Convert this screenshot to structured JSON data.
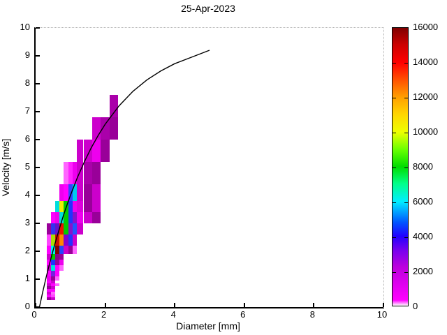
{
  "figure": {
    "title": "25-Apr-2023",
    "xlabel": "Diameter [mm]",
    "ylabel": "Velocity [m/s]"
  },
  "chart_data": {
    "type": "heatmap",
    "title": "25-Apr-2023",
    "xlabel": "Diameter [mm]",
    "ylabel": "Velocity [m/s]",
    "xlim": [
      0,
      10
    ],
    "ylim": [
      0,
      10
    ],
    "grid": "off",
    "x_ticks": [
      0,
      2,
      4,
      6,
      8,
      10
    ],
    "y_ticks": [
      0,
      1,
      2,
      3,
      4,
      5,
      6,
      7,
      8,
      9,
      10
    ],
    "colorbar": {
      "min": 0,
      "max": 16000,
      "ticks": [
        0,
        2000,
        4000,
        6000,
        8000,
        10000,
        12000,
        14000,
        16000
      ],
      "position": "right",
      "gradient": [
        [
          0.0,
          "#FFFFFF"
        ],
        [
          0.02,
          "#FF00FF"
        ],
        [
          0.14,
          "#BB00DD"
        ],
        [
          0.2,
          "#7700EE"
        ],
        [
          0.25,
          "#2200FF"
        ],
        [
          0.3,
          "#0055FF"
        ],
        [
          0.375,
          "#00EEFF"
        ],
        [
          0.44,
          "#00FF88"
        ],
        [
          0.5,
          "#00DD00"
        ],
        [
          0.56,
          "#66FF00"
        ],
        [
          0.625,
          "#EEFF00"
        ],
        [
          0.69,
          "#FFD500"
        ],
        [
          0.75,
          "#FFA000"
        ],
        [
          0.81,
          "#FF5500"
        ],
        [
          0.875,
          "#FF0000"
        ],
        [
          0.94,
          "#CC0000"
        ],
        [
          1.0,
          "#7F0000"
        ]
      ]
    },
    "cells_format": [
      "d_min_mm",
      "d_max_mm",
      "v_min_ms",
      "v_max_ms",
      "color",
      "count"
    ],
    "cells": [
      [
        0.312,
        0.437,
        0.25,
        0.35,
        "#990099",
        2000
      ],
      [
        0.437,
        0.562,
        0.25,
        0.35,
        "#CC00CC",
        1200
      ],
      [
        0.312,
        0.437,
        0.35,
        0.45,
        "#FF00FF",
        600
      ],
      [
        0.437,
        0.562,
        0.35,
        0.45,
        "#FF44FF",
        450
      ],
      [
        0.312,
        0.437,
        0.45,
        0.55,
        "#CC00CC",
        1200
      ],
      [
        0.437,
        0.562,
        0.45,
        0.55,
        "#FF66FF",
        250
      ],
      [
        0.312,
        0.437,
        0.55,
        0.65,
        "#FF00FF",
        600
      ],
      [
        0.437,
        0.562,
        0.55,
        0.65,
        "#FF00FF",
        600
      ],
      [
        0.312,
        0.437,
        0.65,
        0.75,
        "#990099",
        2000
      ],
      [
        0.437,
        0.562,
        0.65,
        0.75,
        "#CC00CC",
        1200
      ],
      [
        0.312,
        0.437,
        0.75,
        0.85,
        "#CC00CC",
        1200
      ],
      [
        0.437,
        0.562,
        0.75,
        0.85,
        "#FF00FF",
        600
      ],
      [
        0.562,
        0.687,
        0.75,
        0.85,
        "#FF66FF",
        250
      ],
      [
        0.312,
        0.437,
        0.85,
        0.95,
        "#FF00FF",
        600
      ],
      [
        0.437,
        0.562,
        0.85,
        0.95,
        "#CC00CC",
        1200
      ],
      [
        0.312,
        0.437,
        0.95,
        1.1,
        "#EE00EE",
        800
      ],
      [
        0.437,
        0.562,
        0.95,
        1.1,
        "#990099",
        2000
      ],
      [
        0.562,
        0.687,
        0.95,
        1.1,
        "#FF66FF",
        250
      ],
      [
        0.312,
        0.437,
        1.1,
        1.3,
        "#FF00FF",
        600
      ],
      [
        0.437,
        0.562,
        1.1,
        1.3,
        "#7722DD",
        3200
      ],
      [
        0.562,
        0.687,
        1.1,
        1.3,
        "#FF00FF",
        600
      ],
      [
        0.312,
        0.437,
        1.3,
        1.5,
        "#CC00CC",
        1200
      ],
      [
        0.437,
        0.562,
        1.3,
        1.5,
        "#00DDDD",
        6300
      ],
      [
        0.562,
        0.687,
        1.3,
        1.5,
        "#FF00FF",
        600
      ],
      [
        0.687,
        0.812,
        1.3,
        1.5,
        "#FF66FF",
        250
      ],
      [
        0.312,
        0.437,
        1.5,
        1.7,
        "#FF00FF",
        600
      ],
      [
        0.437,
        0.562,
        1.5,
        1.7,
        "#2233FF",
        4500
      ],
      [
        0.562,
        0.687,
        1.5,
        1.7,
        "#990099",
        2000
      ],
      [
        0.687,
        0.812,
        1.5,
        1.7,
        "#EE00EE",
        800
      ],
      [
        0.312,
        0.437,
        1.7,
        1.9,
        "#CC00CC",
        1200
      ],
      [
        0.437,
        0.562,
        1.7,
        1.9,
        "#00CC00",
        8500
      ],
      [
        0.562,
        0.687,
        1.7,
        1.9,
        "#880088",
        2300
      ],
      [
        0.687,
        0.812,
        1.7,
        1.9,
        "#990099",
        2000
      ],
      [
        0.312,
        0.437,
        1.9,
        2.2,
        "#FF00FF",
        600
      ],
      [
        0.437,
        0.562,
        1.9,
        2.2,
        "#00EEEE",
        6600
      ],
      [
        0.562,
        0.687,
        1.9,
        2.2,
        "#7F0000",
        16000
      ],
      [
        0.687,
        0.812,
        1.9,
        2.2,
        "#2244FF",
        4400
      ],
      [
        0.812,
        0.937,
        1.9,
        2.2,
        "#CC00CC",
        1200
      ],
      [
        0.937,
        1.062,
        1.9,
        2.2,
        "#990099",
        2000
      ],
      [
        1.062,
        1.187,
        1.9,
        2.2,
        "#FF66FF",
        250
      ],
      [
        0.312,
        0.437,
        2.2,
        2.6,
        "#FF44FF",
        450
      ],
      [
        0.437,
        0.562,
        2.2,
        2.6,
        "#AADD00",
        9800
      ],
      [
        0.562,
        0.687,
        2.2,
        2.6,
        "#CC1100",
        14900
      ],
      [
        0.687,
        0.812,
        2.2,
        2.6,
        "#FF8800",
        12600
      ],
      [
        0.812,
        0.937,
        2.2,
        2.6,
        "#8800CC",
        2900
      ],
      [
        0.937,
        1.062,
        2.2,
        2.6,
        "#2233FF",
        4500
      ],
      [
        1.062,
        1.187,
        2.2,
        2.6,
        "#CC00CC",
        1200
      ],
      [
        0.312,
        0.437,
        2.6,
        3.0,
        "#990099",
        2000
      ],
      [
        0.437,
        0.562,
        2.6,
        3.0,
        "#3333EE",
        4300
      ],
      [
        0.562,
        0.687,
        2.6,
        3.0,
        "#6611CC",
        3100
      ],
      [
        0.687,
        0.812,
        2.6,
        3.0,
        "#EE1100",
        14200
      ],
      [
        0.812,
        0.937,
        2.6,
        3.0,
        "#00CC00",
        8500
      ],
      [
        0.937,
        1.062,
        2.6,
        3.0,
        "#8811CC",
        2900
      ],
      [
        1.062,
        1.187,
        2.6,
        3.0,
        "#2255FF",
        4400
      ],
      [
        1.187,
        1.375,
        2.6,
        3.0,
        "#CC00CC",
        1200
      ],
      [
        0.437,
        0.562,
        3.0,
        3.4,
        "#FF00FF",
        600
      ],
      [
        0.562,
        0.687,
        3.0,
        3.4,
        "#EE00EE",
        800
      ],
      [
        0.687,
        0.812,
        3.0,
        3.4,
        "#00DDDD",
        6400
      ],
      [
        0.812,
        0.937,
        3.0,
        3.4,
        "#00CC00",
        8500
      ],
      [
        0.937,
        1.062,
        3.0,
        3.4,
        "#2233FF",
        4500
      ],
      [
        1.062,
        1.187,
        3.0,
        3.4,
        "#8811CC",
        2900
      ],
      [
        1.187,
        1.375,
        3.0,
        3.4,
        "#EE00EE",
        800
      ],
      [
        1.375,
        1.625,
        3.0,
        3.4,
        "#CC00CC",
        1200
      ],
      [
        1.625,
        1.875,
        3.0,
        3.4,
        "#990099",
        2000
      ],
      [
        0.562,
        0.687,
        3.4,
        3.8,
        "#00DDDD",
        6300
      ],
      [
        0.687,
        0.812,
        3.4,
        3.8,
        "#EEEE00",
        10800
      ],
      [
        0.812,
        0.937,
        3.4,
        3.8,
        "#00CC00",
        8500
      ],
      [
        0.937,
        1.062,
        3.4,
        3.8,
        "#2233FF",
        4500
      ],
      [
        1.062,
        1.187,
        3.4,
        3.8,
        "#EE00EE",
        800
      ],
      [
        1.187,
        1.375,
        3.4,
        3.8,
        "#DD00DD",
        1000
      ],
      [
        1.375,
        1.625,
        3.4,
        3.8,
        "#990099",
        2000
      ],
      [
        1.625,
        1.875,
        3.4,
        3.8,
        "#CC00CC",
        1200
      ],
      [
        0.687,
        0.812,
        3.8,
        4.4,
        "#EE00EE",
        800
      ],
      [
        0.812,
        0.937,
        3.8,
        4.4,
        "#FF00FF",
        600
      ],
      [
        0.937,
        1.062,
        3.8,
        4.4,
        "#3344FF",
        4400
      ],
      [
        1.062,
        1.187,
        3.8,
        4.4,
        "#00CCEE",
        6200
      ],
      [
        1.187,
        1.375,
        3.8,
        4.4,
        "#CC00CC",
        1200
      ],
      [
        1.375,
        1.625,
        3.8,
        4.4,
        "#990099",
        2000
      ],
      [
        1.625,
        1.875,
        3.8,
        4.4,
        "#CC00CC",
        1200
      ],
      [
        0.812,
        0.937,
        4.4,
        5.2,
        "#FF66FF",
        250
      ],
      [
        0.937,
        1.062,
        4.4,
        5.2,
        "#FF22FF",
        520
      ],
      [
        1.062,
        1.187,
        4.4,
        5.2,
        "#EE00EE",
        800
      ],
      [
        1.187,
        1.375,
        4.4,
        5.2,
        "#CC00CC",
        1200
      ],
      [
        1.375,
        1.625,
        4.4,
        5.2,
        "#AA00AA",
        1800
      ],
      [
        1.625,
        1.875,
        4.4,
        5.2,
        "#990099",
        2000
      ],
      [
        1.187,
        1.375,
        5.2,
        6.0,
        "#CC00CC",
        1200
      ],
      [
        1.375,
        1.625,
        5.2,
        6.0,
        "#CC00CC",
        1200
      ],
      [
        1.625,
        1.875,
        5.2,
        6.0,
        "#EE00EE",
        800
      ],
      [
        1.875,
        2.125,
        5.2,
        6.0,
        "#990099",
        2000
      ],
      [
        1.625,
        1.875,
        6.0,
        6.8,
        "#CC00CC",
        1200
      ],
      [
        1.875,
        2.125,
        6.0,
        6.8,
        "#AA00AA",
        1800
      ],
      [
        2.125,
        2.375,
        6.0,
        6.8,
        "#990099",
        2000
      ],
      [
        2.125,
        2.375,
        6.8,
        7.6,
        "#AA00AA",
        1800
      ]
    ],
    "curve": {
      "name": "terminal-velocity-fit-curve",
      "color": "#000000",
      "points": [
        [
          0.11,
          0.0
        ],
        [
          0.2,
          0.52
        ],
        [
          0.3,
          1.05
        ],
        [
          0.4,
          1.55
        ],
        [
          0.5,
          2.02
        ],
        [
          0.6,
          2.46
        ],
        [
          0.7,
          2.88
        ],
        [
          0.8,
          3.28
        ],
        [
          0.9,
          3.65
        ],
        [
          1.0,
          4.0
        ],
        [
          1.2,
          4.64
        ],
        [
          1.4,
          5.2
        ],
        [
          1.6,
          5.71
        ],
        [
          1.8,
          6.15
        ],
        [
          2.0,
          6.55
        ],
        [
          2.4,
          7.21
        ],
        [
          2.8,
          7.73
        ],
        [
          3.2,
          8.14
        ],
        [
          3.6,
          8.46
        ],
        [
          4.0,
          8.72
        ],
        [
          4.5,
          8.96
        ],
        [
          5.0,
          9.2
        ]
      ]
    }
  }
}
